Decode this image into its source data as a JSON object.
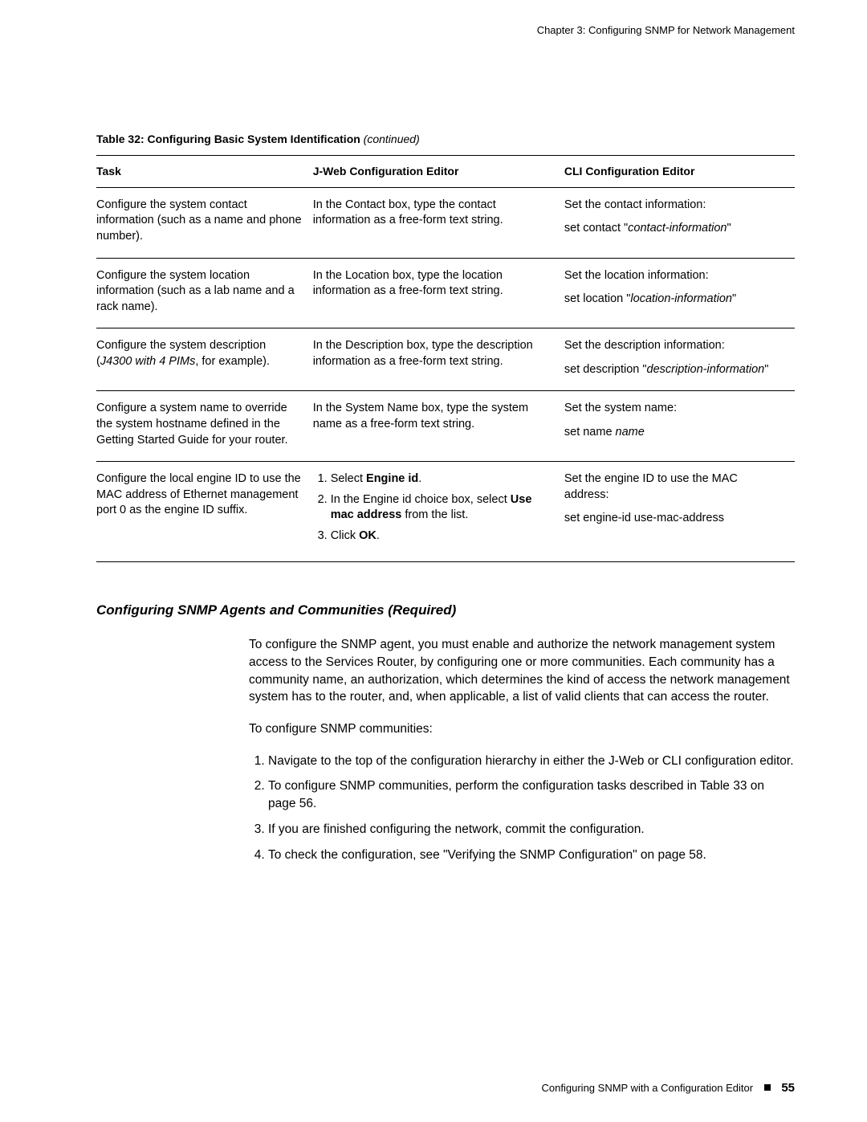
{
  "header": {
    "chapter": "Chapter 3: Configuring SNMP for Network Management"
  },
  "table_caption": {
    "label": "Table 32: Configuring Basic System Identification",
    "suffix": " (continued)"
  },
  "table": {
    "headers": [
      "Task",
      "J-Web Configuration Editor",
      "CLI Configuration Editor"
    ],
    "rows": [
      {
        "task": "Configure the system contact information (such as a name and phone number).",
        "jweb": "In the Contact box, type the contact information as a free-form text string.",
        "cli_intro": "Set the contact information:",
        "cli_cmd_pre": "set contact \"",
        "cli_cmd_var": "contact-information",
        "cli_cmd_post": "\""
      },
      {
        "task": "Configure the system location information (such as a lab name and a rack name).",
        "jweb": "In the Location box, type the location information as a free-form text string.",
        "cli_intro": "Set the location information:",
        "cli_cmd_pre": "set location \"",
        "cli_cmd_var": "location-information",
        "cli_cmd_post": "\""
      },
      {
        "task_pre": "Configure the system description (",
        "task_italic": "J4300 with 4 PIMs",
        "task_post": ", for example).",
        "jweb": "In the Description box, type the description information as a free-form text string.",
        "cli_intro": "Set the description information:",
        "cli_cmd_pre": "set description \"",
        "cli_cmd_var": "description-information",
        "cli_cmd_post": "\""
      },
      {
        "task": "Configure a system name to override the system hostname defined in the Getting Started Guide for your router.",
        "jweb": "In the System Name box, type the system name as a free-form text string.",
        "cli_intro": "Set the system name:",
        "cli_cmd_pre": "set name ",
        "cli_cmd_var": "name",
        "cli_cmd_post": ""
      },
      {
        "task": "Configure the local engine ID to use the MAC address of Ethernet management port 0 as the engine ID suffix.",
        "jweb_list": [
          {
            "pre": "Select ",
            "bold": "Engine id",
            "post": "."
          },
          {
            "pre": "In the Engine id choice box, select ",
            "bold": "Use mac address",
            "post": " from the list."
          },
          {
            "pre": "Click ",
            "bold": "OK",
            "post": "."
          }
        ],
        "cli_intro": "Set the engine ID to use the MAC address:",
        "cli_cmd_full": "set engine-id use-mac-address"
      }
    ]
  },
  "section": {
    "heading": "Configuring SNMP Agents and Communities (Required)",
    "para1": "To configure the SNMP agent, you must enable and authorize the network management system access to the Services Router, by configuring one or more communities. Each community has a community name, an authorization, which determines the kind of access the network management system has to the router, and, when applicable, a list of valid clients that can access the router.",
    "para2": "To configure SNMP communities:",
    "steps": [
      "Navigate to the top of the configuration hierarchy in either the J-Web or CLI configuration editor.",
      "To configure SNMP communities, perform the configuration tasks described in Table 33 on page 56.",
      "If you are finished configuring the network, commit the configuration.",
      "To check the configuration, see \"Verifying the SNMP Configuration\" on page 58."
    ]
  },
  "footer": {
    "text": "Configuring SNMP with a Configuration Editor",
    "page": "55"
  }
}
